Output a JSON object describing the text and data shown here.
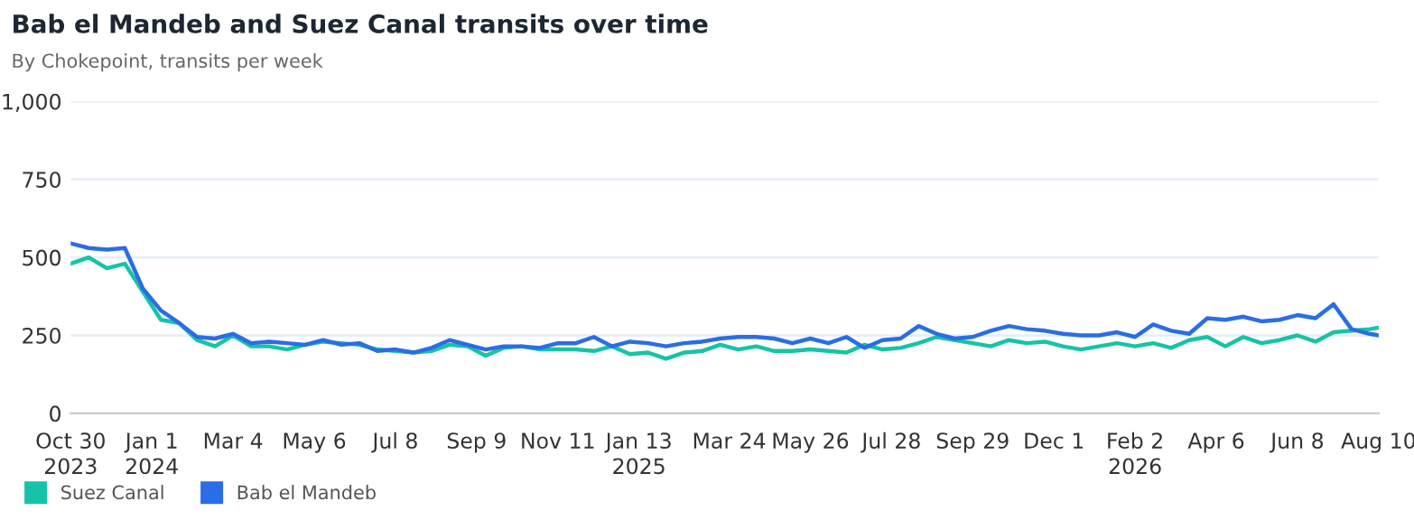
{
  "chart_data": {
    "type": "line",
    "title": "Bab el Mandeb and Suez Canal transits over time",
    "subtitle": "By Chokepoint, transits per week",
    "x": [
      "2023-10-30",
      "2023-11-13",
      "2023-11-27",
      "2023-12-11",
      "2023-12-25",
      "2024-01-08",
      "2024-01-22",
      "2024-02-05",
      "2024-02-19",
      "2024-03-04",
      "2024-03-18",
      "2024-04-01",
      "2024-04-15",
      "2024-04-29",
      "2024-05-13",
      "2024-05-27",
      "2024-06-10",
      "2024-06-24",
      "2024-07-08",
      "2024-07-22",
      "2024-08-05",
      "2024-08-19",
      "2024-09-02",
      "2024-09-16",
      "2024-09-30",
      "2024-10-14",
      "2024-10-28",
      "2024-11-11",
      "2024-11-25",
      "2024-12-09",
      "2024-12-23",
      "2025-01-06",
      "2025-01-20",
      "2025-02-03",
      "2025-02-17",
      "2025-03-03",
      "2025-03-17",
      "2025-03-31",
      "2025-04-14",
      "2025-04-28",
      "2025-05-12",
      "2025-05-26",
      "2025-06-09",
      "2025-06-23",
      "2025-07-07",
      "2025-07-21",
      "2025-08-04",
      "2025-08-18",
      "2025-09-01",
      "2025-09-15",
      "2025-09-29",
      "2025-10-13",
      "2025-10-27",
      "2025-11-10",
      "2025-11-24",
      "2025-12-08",
      "2025-12-22",
      "2026-01-05",
      "2026-01-19",
      "2026-02-02",
      "2026-02-16",
      "2026-03-02",
      "2026-03-16",
      "2026-03-30",
      "2026-04-13",
      "2026-04-27",
      "2026-05-11",
      "2026-05-25",
      "2026-06-08",
      "2026-06-22",
      "2026-07-06",
      "2026-07-20",
      "2026-08-03",
      "2026-08-10"
    ],
    "series": [
      {
        "name": "Suez Canal",
        "color": "#17c3a6",
        "values": [
          480,
          500,
          465,
          480,
          390,
          300,
          290,
          235,
          215,
          250,
          215,
          215,
          205,
          220,
          230,
          225,
          220,
          205,
          200,
          195,
          200,
          220,
          215,
          185,
          210,
          215,
          205,
          205,
          205,
          200,
          215,
          190,
          195,
          175,
          195,
          200,
          220,
          205,
          215,
          200,
          200,
          205,
          200,
          195,
          220,
          205,
          210,
          225,
          245,
          235,
          225,
          215,
          235,
          225,
          230,
          215,
          205,
          215,
          225,
          215,
          225,
          210,
          235,
          245,
          215,
          245,
          225,
          235,
          250,
          230,
          260,
          265,
          270,
          275
        ]
      },
      {
        "name": "Bab el Mandeb",
        "color": "#2a6de6",
        "values": [
          545,
          530,
          525,
          530,
          400,
          330,
          290,
          245,
          240,
          255,
          225,
          230,
          225,
          220,
          235,
          220,
          225,
          200,
          205,
          195,
          210,
          235,
          220,
          205,
          215,
          215,
          210,
          225,
          225,
          245,
          215,
          230,
          225,
          215,
          225,
          230,
          240,
          245,
          245,
          240,
          225,
          240,
          225,
          245,
          210,
          235,
          240,
          280,
          255,
          240,
          245,
          265,
          280,
          270,
          265,
          255,
          250,
          250,
          260,
          245,
          285,
          265,
          255,
          305,
          300,
          310,
          295,
          300,
          315,
          305,
          350,
          270,
          255,
          250
        ]
      }
    ],
    "xlim": [
      "2023-10-30",
      "2026-08-10"
    ],
    "xticks": [
      {
        "value": "2023-10-30",
        "label": "Oct 30\n2023"
      },
      {
        "value": "2024-01-01",
        "label": "Jan 1\n2024"
      },
      {
        "value": "2024-03-04",
        "label": "Mar 4"
      },
      {
        "value": "2024-05-06",
        "label": "May 6"
      },
      {
        "value": "2024-07-08",
        "label": "Jul 8"
      },
      {
        "value": "2024-09-09",
        "label": "Sep 9"
      },
      {
        "value": "2024-11-11",
        "label": "Nov 11"
      },
      {
        "value": "2025-01-13",
        "label": "Jan 13\n2025"
      },
      {
        "value": "2025-03-24",
        "label": "Mar 24"
      },
      {
        "value": "2025-05-26",
        "label": "May 26"
      },
      {
        "value": "2025-07-28",
        "label": "Jul 28"
      },
      {
        "value": "2025-09-29",
        "label": "Sep 29"
      },
      {
        "value": "2025-12-01",
        "label": "Dec 1"
      },
      {
        "value": "2026-02-02",
        "label": "Feb 2\n2026"
      },
      {
        "value": "2026-04-06",
        "label": "Apr 6"
      },
      {
        "value": "2026-06-08",
        "label": "Jun 8"
      },
      {
        "value": "2026-08-10",
        "label": "Aug 10"
      }
    ],
    "ylim": [
      0,
      1000
    ],
    "yticks": [
      0,
      250,
      500,
      {
        "value": 750,
        "label": "750"
      },
      {
        "value": 1000,
        "label": "1,000"
      }
    ],
    "grid": "y",
    "legend": "bottom left",
    "line_style": "solid"
  }
}
